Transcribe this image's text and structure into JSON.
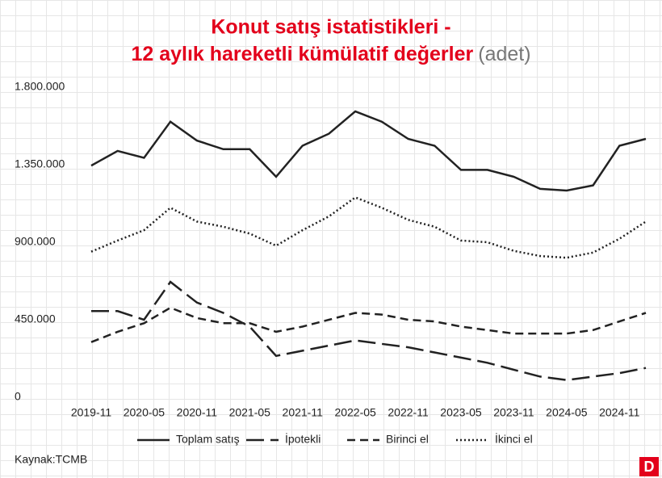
{
  "chart_data": {
    "type": "line",
    "title": [
      "Konut satış istatistikleri -",
      "12 aylık hareketli kümülatif değerler"
    ],
    "title_unit": "(adet)",
    "source": "Kaynak:TCMB",
    "logo": "D",
    "categories": [
      "2019-11",
      null,
      "2020-05",
      null,
      "2020-11",
      null,
      "2021-05",
      null,
      "2021-11",
      null,
      "2022-05",
      null,
      "2022-11",
      null,
      "2023-05",
      null,
      "2023-11",
      null,
      "2024-05",
      null,
      "2024-11",
      null
    ],
    "ylim": [
      0,
      1800000
    ],
    "yticks": [
      0,
      {
        "value": 450000,
        "label": "450.000"
      },
      {
        "value": 900000,
        "label": "900.000"
      },
      {
        "value": 1350000,
        "label": "1.350.000"
      },
      {
        "value": 1800000,
        "label": "1.800.000"
      }
    ],
    "series": [
      {
        "name": "Toplam satış",
        "color": "#222222",
        "style": "solid",
        "values": [
          1345000,
          1430000,
          1390000,
          1600000,
          1490000,
          1440000,
          1440000,
          1280000,
          1460000,
          1530000,
          1660000,
          1600000,
          1500000,
          1460000,
          1320000,
          1320000,
          1280000,
          1210000,
          1200000,
          1230000,
          1460000,
          1500000
        ]
      },
      {
        "name": "İpotekli",
        "color": "#222222",
        "style": "longdash",
        "values": [
          500000,
          500000,
          450000,
          670000,
          550000,
          490000,
          410000,
          240000,
          270000,
          300000,
          330000,
          310000,
          290000,
          260000,
          230000,
          200000,
          160000,
          120000,
          100000,
          120000,
          140000,
          170000
        ]
      },
      {
        "name": "Birinci el",
        "color": "#222222",
        "style": "dashed",
        "values": [
          320000,
          380000,
          430000,
          520000,
          460000,
          430000,
          430000,
          380000,
          410000,
          450000,
          490000,
          480000,
          450000,
          440000,
          410000,
          390000,
          370000,
          370000,
          370000,
          390000,
          440000,
          490000
        ]
      },
      {
        "name": "İkinci el",
        "color": "#222222",
        "style": "dotted",
        "values": [
          845000,
          910000,
          970000,
          1100000,
          1020000,
          990000,
          950000,
          880000,
          970000,
          1050000,
          1160000,
          1100000,
          1030000,
          990000,
          910000,
          900000,
          850000,
          820000,
          810000,
          840000,
          920000,
          1020000
        ]
      }
    ]
  }
}
